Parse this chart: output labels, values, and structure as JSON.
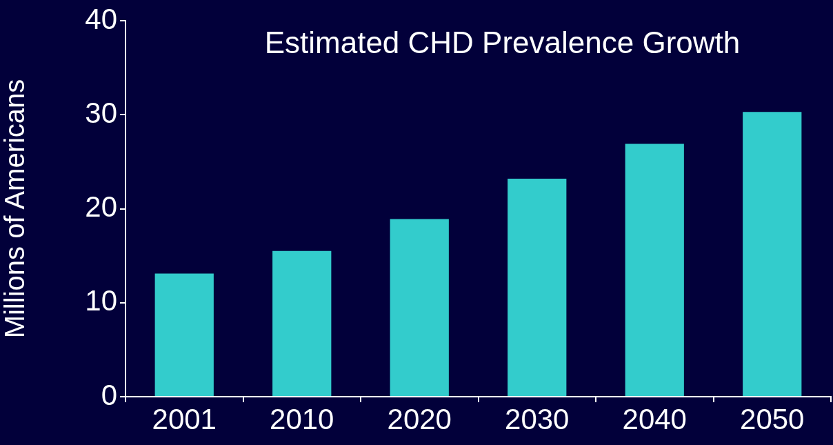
{
  "chart_data": {
    "type": "bar",
    "title": "Estimated CHD Prevalence Growth",
    "ylabel": "Millions of Americans",
    "categories": [
      "2001",
      "2010",
      "2020",
      "2030",
      "2040",
      "2050"
    ],
    "values": [
      13.1,
      15.5,
      18.9,
      23.2,
      26.9,
      30.3
    ],
    "color": "#33cccc",
    "ylim": [
      0,
      40
    ],
    "yticks": [
      0,
      10,
      20,
      30,
      40
    ],
    "grid": false,
    "legend": false
  }
}
